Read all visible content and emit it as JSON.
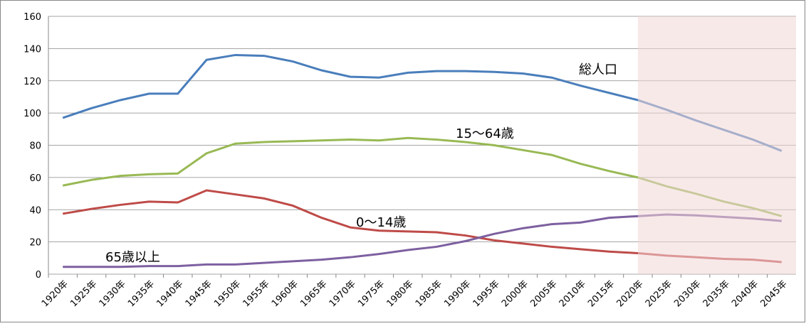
{
  "chart_data": {
    "type": "line",
    "categories": [
      "1920年",
      "1925年",
      "1930年",
      "1935年",
      "1940年",
      "1945年",
      "1950年",
      "1955年",
      "1960年",
      "1965年",
      "1970年",
      "1975年",
      "1980年",
      "1985年",
      "1990年",
      "1995年",
      "2000年",
      "2005年",
      "2010年",
      "2015年",
      "2020年",
      "2025年",
      "2030年",
      "2035年",
      "2040年",
      "2045年"
    ],
    "series": [
      {
        "name": "総人口",
        "color": "#4a7ebb",
        "values": [
          97,
          103,
          108,
          112,
          112,
          133,
          136,
          135.5,
          132,
          126.5,
          122.5,
          122,
          125,
          126,
          126,
          125.5,
          124.5,
          122,
          117,
          112.5,
          108,
          102,
          95.5,
          89.5,
          83.5,
          76.5
        ]
      },
      {
        "name": "15～64歳",
        "color": "#98b954",
        "values": [
          55,
          58.5,
          61,
          62,
          62.5,
          75,
          81,
          82,
          82.5,
          83,
          83.5,
          83,
          84.5,
          83.5,
          82,
          80,
          77,
          74,
          68.5,
          64,
          60,
          54.5,
          50,
          45,
          41,
          36
        ]
      },
      {
        "name": "0～14歳",
        "color": "#be4b48",
        "values": [
          37.5,
          40.5,
          43,
          45,
          44.5,
          52,
          49.5,
          47,
          42.5,
          35,
          29,
          27,
          26.5,
          26,
          24,
          21,
          19,
          17,
          15.5,
          14,
          13,
          11.5,
          10.5,
          9.5,
          9,
          7.5
        ]
      },
      {
        "name": "65歳以上",
        "color": "#7d60a0",
        "values": [
          4.5,
          4.5,
          4.5,
          5,
          5,
          6,
          6,
          7,
          8,
          9,
          10.5,
          12.5,
          15,
          17,
          20.5,
          25,
          28.5,
          31,
          32,
          35,
          36,
          37,
          36.5,
          35.5,
          34.5,
          33
        ]
      }
    ],
    "ylim": [
      0,
      160
    ],
    "yticks": [
      0,
      20,
      40,
      60,
      80,
      100,
      120,
      140,
      160
    ],
    "grid": true,
    "shaded_from": "2020年"
  }
}
